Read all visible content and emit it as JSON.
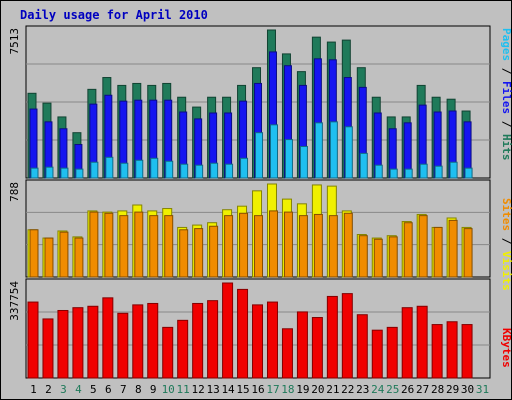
{
  "chart_data": [
    {
      "type": "bar",
      "title": "Daily usage for April 2010",
      "categories": [
        "1",
        "2",
        "3",
        "4",
        "5",
        "6",
        "7",
        "8",
        "9",
        "10",
        "11",
        "12",
        "13",
        "14",
        "15",
        "16",
        "17",
        "18",
        "19",
        "20",
        "21",
        "22",
        "23",
        "24",
        "25",
        "26",
        "27",
        "28",
        "29",
        "30",
        "31"
      ],
      "weekend_days": [
        "3",
        "4",
        "10",
        "11",
        "17",
        "18",
        "24",
        "25",
        "31"
      ],
      "y_tick_label": "7513",
      "ylim": [
        0,
        7513
      ],
      "series": [
        {
          "name": "Hits",
          "color": "#1f7a5a",
          "values": [
            4300,
            3800,
            3100,
            2300,
            4500,
            5100,
            4700,
            4800,
            4700,
            4800,
            4100,
            3600,
            4100,
            4100,
            4700,
            5600,
            7513,
            6300,
            5400,
            7150,
            6900,
            7000,
            5600,
            4100,
            3100,
            3100,
            4700,
            4100,
            4000,
            3400,
            null
          ]
        },
        {
          "name": "Files",
          "color": "#1515f0",
          "values": [
            3500,
            2850,
            2500,
            1700,
            3750,
            4200,
            3900,
            3950,
            3950,
            3950,
            3350,
            3000,
            3300,
            3300,
            3900,
            4800,
            6400,
            5700,
            4700,
            6050,
            6000,
            5100,
            4600,
            3300,
            2500,
            2800,
            3700,
            3350,
            3400,
            2850,
            null
          ]
        },
        {
          "name": "Pages",
          "color": "#1fbff0",
          "values": [
            500,
            550,
            500,
            450,
            800,
            1050,
            750,
            900,
            1000,
            850,
            700,
            650,
            750,
            700,
            1000,
            2300,
            2700,
            1950,
            1600,
            2800,
            2850,
            2600,
            1250,
            650,
            450,
            450,
            700,
            600,
            800,
            500,
            null
          ]
        },
        {
          "name": "Visits",
          "color": "#f0f000",
          "axis": "middle",
          "values": [
            null,
            null,
            null,
            null,
            null,
            null,
            null,
            null,
            null,
            null,
            null,
            null,
            null,
            null,
            null,
            null,
            null,
            null,
            null,
            null,
            null,
            null,
            null,
            null,
            null,
            null,
            null,
            null,
            null,
            null,
            null
          ]
        }
      ]
    },
    {
      "type": "bar",
      "y_tick_label": "788",
      "ylim": [
        0,
        788
      ],
      "series": [
        {
          "name": "Visits",
          "color": "#f0f000",
          "values": [
            400,
            330,
            390,
            340,
            560,
            550,
            560,
            610,
            560,
            580,
            420,
            440,
            460,
            570,
            600,
            730,
            788,
            660,
            620,
            780,
            770,
            560,
            360,
            330,
            350,
            470,
            530,
            420,
            500,
            420,
            null
          ]
        },
        {
          "name": "Sites",
          "color": "#f08c00",
          "values": [
            400,
            330,
            380,
            330,
            550,
            540,
            520,
            550,
            520,
            520,
            400,
            410,
            430,
            520,
            540,
            520,
            560,
            550,
            520,
            530,
            520,
            540,
            350,
            320,
            340,
            460,
            520,
            420,
            480,
            410,
            null
          ]
        }
      ]
    },
    {
      "type": "bar",
      "y_tick_label": "337754",
      "ylim": [
        0,
        337754
      ],
      "series": [
        {
          "name": "KBytes",
          "color": "#f00000",
          "values": [
            270000,
            210000,
            240000,
            250000,
            255000,
            285000,
            230000,
            260000,
            265000,
            180000,
            205000,
            265000,
            275000,
            337754,
            315000,
            260000,
            270000,
            175000,
            235000,
            215000,
            290000,
            300000,
            225000,
            170000,
            180000,
            250000,
            255000,
            190000,
            200000,
            190000,
            null
          ]
        }
      ]
    }
  ]
}
